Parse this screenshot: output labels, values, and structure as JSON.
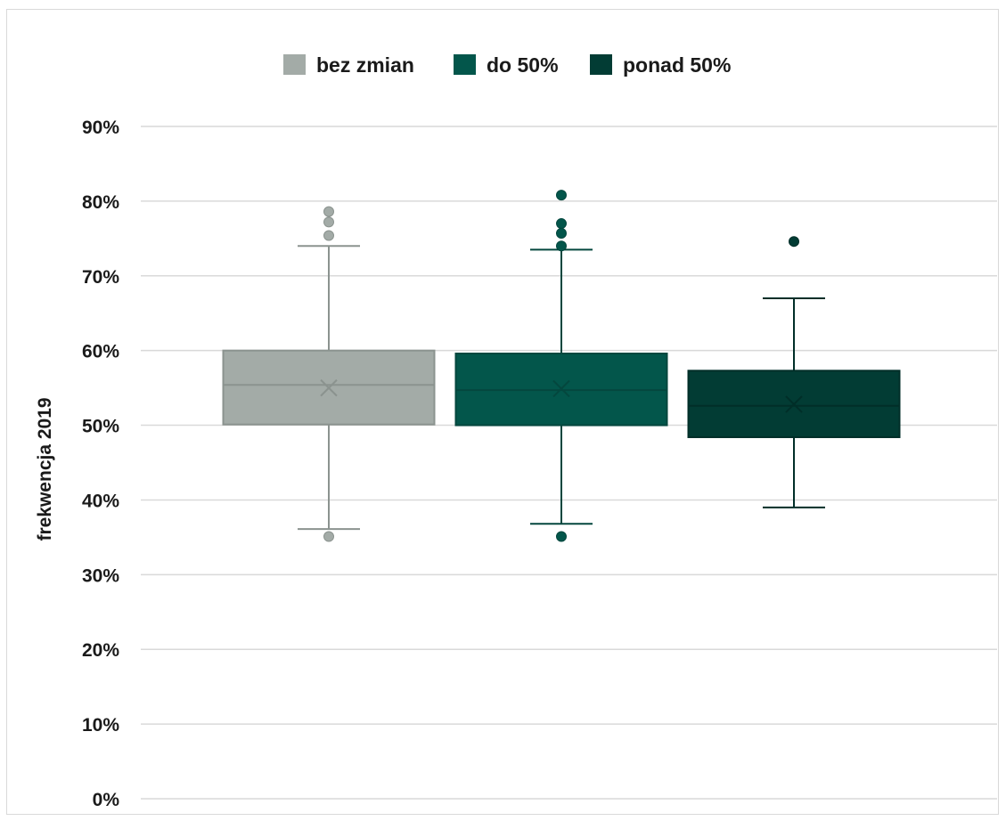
{
  "chart_data": {
    "type": "box",
    "title": "",
    "xlabel": "",
    "ylabel": "frekwencja 2019",
    "ylim": [
      0,
      90
    ],
    "yticks": [
      "0%",
      "10%",
      "20%",
      "30%",
      "40%",
      "50%",
      "60%",
      "70%",
      "80%",
      "90%"
    ],
    "ytick_values": [
      0,
      10,
      20,
      30,
      40,
      50,
      60,
      70,
      80,
      90
    ],
    "grid": true,
    "legend_position": "top",
    "series": [
      {
        "name": "bez zmian",
        "color": "#a3aba7",
        "edge_color": "#8b938f",
        "whisker_min": 36.1,
        "q1": 50.1,
        "median": 55.4,
        "mean": 55.0,
        "q3": 60.0,
        "whisker_max": 74.0,
        "outliers": [
          35.1,
          75.4,
          77.2,
          78.6
        ]
      },
      {
        "name": "do 50%",
        "color": "#03564b",
        "edge_color": "#04473e",
        "whisker_min": 36.8,
        "q1": 50.0,
        "median": 54.7,
        "mean": 54.9,
        "q3": 59.6,
        "whisker_max": 73.5,
        "outliers": [
          35.1,
          74.0,
          75.7,
          77.0,
          80.8
        ]
      },
      {
        "name": "ponad 50%",
        "color": "#023c34",
        "edge_color": "#012e28",
        "whisker_min": 39.0,
        "q1": 48.4,
        "median": 52.6,
        "mean": 52.8,
        "q3": 57.3,
        "whisker_max": 67.0,
        "outliers": [
          74.6
        ]
      }
    ]
  }
}
